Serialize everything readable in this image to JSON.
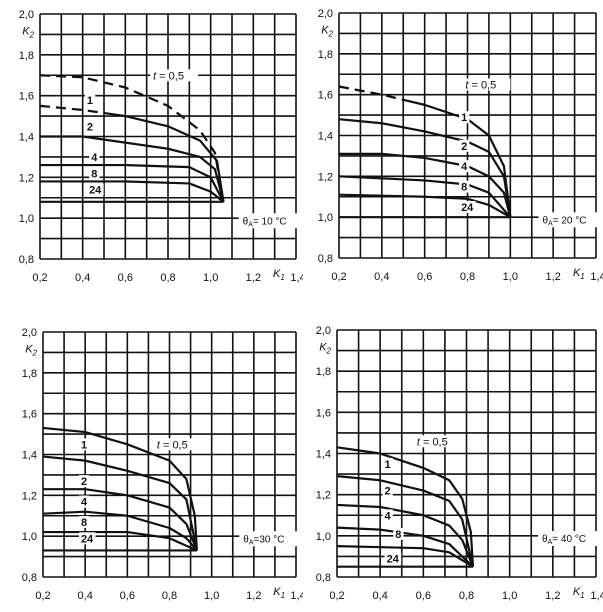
{
  "chart_data": [
    {
      "type": "line",
      "xlabel": "K1",
      "ylabel": "K2",
      "xlim": [
        0.2,
        1.4
      ],
      "ylim": [
        0.8,
        2.0
      ],
      "xticks": [
        "0,2",
        "0,4",
        "0,6",
        "0,8",
        "1,0",
        "1,2",
        "1,4"
      ],
      "yticks": [
        "0,8",
        "1,0",
        "1,2",
        "1,4",
        "1,6",
        "1,8",
        "2,0"
      ],
      "grid": true,
      "annotation": {
        "symbol": "θ",
        "subscript": "A",
        "text": "= 10 °C"
      },
      "series": [
        {
          "name": "t = 0,5",
          "style": "dashed",
          "x": [
            0.2,
            0.4,
            0.6,
            0.8,
            0.95,
            1.02,
            1.06
          ],
          "y": [
            1.7,
            1.69,
            1.64,
            1.55,
            1.43,
            1.32,
            1.08
          ]
        },
        {
          "name": "1",
          "style": "dashed-start",
          "x": [
            0.2,
            0.4,
            0.6,
            0.8,
            0.95,
            1.03,
            1.06
          ],
          "y": [
            1.55,
            1.53,
            1.5,
            1.45,
            1.38,
            1.28,
            1.08
          ]
        },
        {
          "name": "2",
          "style": "solid",
          "x": [
            0.2,
            0.4,
            0.6,
            0.8,
            0.95,
            1.02,
            1.06
          ],
          "y": [
            1.4,
            1.4,
            1.37,
            1.34,
            1.3,
            1.24,
            1.08
          ]
        },
        {
          "name": "4",
          "style": "solid",
          "x": [
            0.2,
            0.6,
            0.9,
            1.0,
            1.06
          ],
          "y": [
            1.26,
            1.26,
            1.25,
            1.2,
            1.08
          ]
        },
        {
          "name": "8",
          "style": "solid",
          "x": [
            0.2,
            0.6,
            0.9,
            1.0,
            1.06
          ],
          "y": [
            1.18,
            1.18,
            1.17,
            1.13,
            1.08
          ]
        },
        {
          "name": "24",
          "style": "solid",
          "x": [
            0.2,
            1.06
          ],
          "y": [
            1.08,
            1.08
          ]
        }
      ]
    },
    {
      "type": "line",
      "xlabel": "K1",
      "ylabel": "K2",
      "xlim": [
        0.2,
        1.4
      ],
      "ylim": [
        0.8,
        2.0
      ],
      "xticks": [
        "0,2",
        "0,4",
        "0,6",
        "0,8",
        "1,0",
        "1,2",
        "1,4"
      ],
      "yticks": [
        "0,8",
        "1,0",
        "1,2",
        "1,4",
        "1,6",
        "1,8",
        "2,0"
      ],
      "grid": true,
      "annotation": {
        "symbol": "θ",
        "subscript": "A",
        "text": "= 20 °C"
      },
      "series": [
        {
          "name": "t = 0,5",
          "style": "dashed-start",
          "x": [
            0.2,
            0.4,
            0.6,
            0.8,
            0.9,
            0.97,
            1.0
          ],
          "y": [
            1.64,
            1.6,
            1.55,
            1.48,
            1.4,
            1.25,
            1.0
          ]
        },
        {
          "name": "1",
          "style": "solid",
          "x": [
            0.2,
            0.4,
            0.6,
            0.8,
            0.9,
            0.97,
            1.0
          ],
          "y": [
            1.48,
            1.46,
            1.42,
            1.37,
            1.32,
            1.2,
            1.0
          ]
        },
        {
          "name": "2",
          "style": "solid",
          "x": [
            0.2,
            0.4,
            0.6,
            0.8,
            0.9,
            0.97,
            1.0
          ],
          "y": [
            1.31,
            1.31,
            1.29,
            1.25,
            1.2,
            1.12,
            1.0
          ]
        },
        {
          "name": "4",
          "style": "solid",
          "x": [
            0.2,
            0.6,
            0.8,
            0.9,
            1.0
          ],
          "y": [
            1.2,
            1.18,
            1.16,
            1.12,
            1.0
          ]
        },
        {
          "name": "8",
          "style": "solid",
          "x": [
            0.2,
            0.6,
            0.8,
            0.9,
            1.0
          ],
          "y": [
            1.11,
            1.1,
            1.09,
            1.06,
            1.0
          ]
        },
        {
          "name": "24",
          "style": "solid",
          "x": [
            0.2,
            1.0
          ],
          "y": [
            1.0,
            1.0
          ]
        }
      ]
    },
    {
      "type": "line",
      "xlabel": "K1",
      "ylabel": "K2",
      "xlim": [
        0.2,
        1.4
      ],
      "ylim": [
        0.8,
        2.0
      ],
      "xticks": [
        "0,2",
        "0,4",
        "0,6",
        "0,8",
        "1,0",
        "1,2",
        "1,4"
      ],
      "yticks": [
        "0,8",
        "1,0",
        "1,2",
        "1,4",
        "1,6",
        "1,8",
        "2,0"
      ],
      "grid": true,
      "annotation": {
        "symbol": "θ",
        "subscript": "A",
        "text": "=30 °C"
      },
      "series": [
        {
          "name": "t = 0,5",
          "style": "solid",
          "x": [
            0.2,
            0.4,
            0.6,
            0.8,
            0.88,
            0.92,
            0.93
          ],
          "y": [
            1.53,
            1.51,
            1.45,
            1.37,
            1.28,
            1.1,
            0.93
          ]
        },
        {
          "name": "1",
          "style": "solid",
          "x": [
            0.2,
            0.4,
            0.6,
            0.8,
            0.88,
            0.93
          ],
          "y": [
            1.39,
            1.37,
            1.32,
            1.26,
            1.18,
            0.93
          ]
        },
        {
          "name": "2",
          "style": "solid",
          "x": [
            0.2,
            0.4,
            0.6,
            0.8,
            0.88,
            0.93
          ],
          "y": [
            1.23,
            1.23,
            1.2,
            1.14,
            1.06,
            0.93
          ]
        },
        {
          "name": "4",
          "style": "solid",
          "x": [
            0.2,
            0.4,
            0.6,
            0.8,
            0.88,
            0.93
          ],
          "y": [
            1.11,
            1.12,
            1.1,
            1.04,
            0.99,
            0.93
          ]
        },
        {
          "name": "8",
          "style": "solid",
          "x": [
            0.2,
            0.6,
            0.8,
            0.93
          ],
          "y": [
            1.02,
            1.02,
            0.99,
            0.93
          ]
        },
        {
          "name": "24",
          "style": "solid",
          "x": [
            0.2,
            0.93
          ],
          "y": [
            0.93,
            0.93
          ]
        }
      ]
    },
    {
      "type": "line",
      "xlabel": "K1",
      "ylabel": "K2",
      "xlim": [
        0.2,
        1.4
      ],
      "ylim": [
        0.8,
        2.0
      ],
      "xticks": [
        "0,2",
        "0,4",
        "0,6",
        "0,8",
        "1,0",
        "1,2",
        "1,4"
      ],
      "yticks": [
        "0,8",
        "1,0",
        "1,2",
        "1,4",
        "1,6",
        "1,8",
        "2,0"
      ],
      "grid": true,
      "annotation": {
        "symbol": "θ",
        "subscript": "A",
        "text": "= 40 °C"
      },
      "series": [
        {
          "name": "t = 0,5",
          "style": "solid",
          "x": [
            0.2,
            0.4,
            0.6,
            0.72,
            0.78,
            0.82,
            0.83
          ],
          "y": [
            1.43,
            1.4,
            1.33,
            1.27,
            1.18,
            1.02,
            0.85
          ]
        },
        {
          "name": "1",
          "style": "solid",
          "x": [
            0.2,
            0.4,
            0.6,
            0.72,
            0.78,
            0.83
          ],
          "y": [
            1.29,
            1.27,
            1.22,
            1.17,
            1.08,
            0.85
          ]
        },
        {
          "name": "2",
          "style": "solid",
          "x": [
            0.2,
            0.4,
            0.6,
            0.72,
            0.78,
            0.83
          ],
          "y": [
            1.15,
            1.14,
            1.1,
            1.05,
            0.98,
            0.85
          ]
        },
        {
          "name": "4",
          "style": "solid",
          "x": [
            0.2,
            0.4,
            0.6,
            0.72,
            0.83
          ],
          "y": [
            1.04,
            1.03,
            1.0,
            0.96,
            0.85
          ]
        },
        {
          "name": "8",
          "style": "solid",
          "x": [
            0.2,
            0.6,
            0.72,
            0.83
          ],
          "y": [
            0.95,
            0.94,
            0.92,
            0.85
          ]
        },
        {
          "name": "24",
          "style": "solid",
          "x": [
            0.2,
            0.83
          ],
          "y": [
            0.85,
            0.85
          ]
        }
      ]
    }
  ]
}
